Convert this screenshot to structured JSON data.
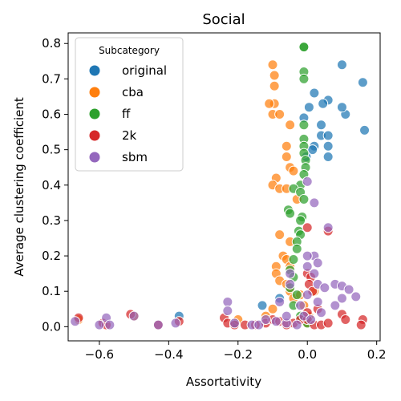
{
  "chart_data": {
    "type": "scatter",
    "title": "Social",
    "xlabel": "Assortativity",
    "ylabel": "Average clustering coefficient",
    "xlim": [
      -0.69,
      0.21
    ],
    "ylim": [
      -0.04,
      0.83
    ],
    "xticks": [
      -0.6,
      -0.4,
      -0.2,
      0.0,
      0.2
    ],
    "xtick_labels": [
      "−0.6",
      "−0.4",
      "−0.2",
      "0.0",
      "0.2"
    ],
    "yticks": [
      0.0,
      0.1,
      0.2,
      0.3,
      0.4,
      0.5,
      0.6,
      0.7,
      0.8
    ],
    "ytick_labels": [
      "0.0",
      "0.1",
      "0.2",
      "0.3",
      "0.4",
      "0.5",
      "0.6",
      "0.7",
      "0.8"
    ],
    "grid": false,
    "legend": {
      "title": "Subcategory",
      "location": "upper-left"
    },
    "series": [
      {
        "name": "original",
        "color": "#1f77b4",
        "points": [
          [
            0.1,
            0.74
          ],
          [
            0.16,
            0.69
          ],
          [
            0.165,
            0.555
          ],
          [
            0.11,
            0.6
          ],
          [
            0.1,
            0.62
          ],
          [
            0.06,
            0.64
          ],
          [
            0.045,
            0.63
          ],
          [
            0.02,
            0.66
          ],
          [
            0.005,
            0.62
          ],
          [
            -0.01,
            0.59
          ],
          [
            0.04,
            0.57
          ],
          [
            0.04,
            0.54
          ],
          [
            0.06,
            0.54
          ],
          [
            0.06,
            0.51
          ],
          [
            0.02,
            0.51
          ],
          [
            0.015,
            0.5
          ],
          [
            0.06,
            0.48
          ],
          [
            -0.003,
            0.48
          ],
          [
            -0.08,
            0.08
          ],
          [
            -0.13,
            0.06
          ],
          [
            -0.37,
            0.03
          ],
          [
            -0.21,
            0.01
          ]
        ]
      },
      {
        "name": "cba",
        "color": "#ff7f0e",
        "points": [
          [
            -0.1,
            0.74
          ],
          [
            -0.095,
            0.71
          ],
          [
            -0.095,
            0.68
          ],
          [
            -0.095,
            0.63
          ],
          [
            -0.11,
            0.63
          ],
          [
            -0.1,
            0.6
          ],
          [
            -0.08,
            0.6
          ],
          [
            -0.05,
            0.57
          ],
          [
            -0.06,
            0.51
          ],
          [
            -0.06,
            0.48
          ],
          [
            -0.05,
            0.45
          ],
          [
            -0.04,
            0.44
          ],
          [
            -0.09,
            0.42
          ],
          [
            -0.1,
            0.4
          ],
          [
            -0.08,
            0.39
          ],
          [
            -0.06,
            0.39
          ],
          [
            -0.03,
            0.36
          ],
          [
            -0.08,
            0.26
          ],
          [
            -0.05,
            0.24
          ],
          [
            -0.07,
            0.2
          ],
          [
            -0.06,
            0.19
          ],
          [
            -0.09,
            0.17
          ],
          [
            -0.05,
            0.17
          ],
          [
            -0.09,
            0.15
          ],
          [
            -0.08,
            0.13
          ],
          [
            -0.06,
            0.12
          ],
          [
            -0.05,
            0.1
          ],
          [
            -0.04,
            0.08
          ],
          [
            -0.1,
            0.05
          ],
          [
            -0.12,
            0.03
          ],
          [
            -0.5,
            0.03
          ],
          [
            -0.66,
            0.02
          ],
          [
            -0.2,
            0.02
          ],
          [
            0.0,
            0.01
          ],
          [
            -0.02,
            0.09
          ],
          [
            0.02,
            0.1
          ],
          [
            -0.01,
            0.06
          ],
          [
            0.005,
            0.03
          ]
        ]
      },
      {
        "name": "ff",
        "color": "#2ca02c",
        "points": [
          [
            -0.01,
            0.79
          ],
          [
            -0.01,
            0.79
          ],
          [
            -0.01,
            0.72
          ],
          [
            -0.01,
            0.7
          ],
          [
            -0.01,
            0.57
          ],
          [
            -0.01,
            0.53
          ],
          [
            -0.01,
            0.51
          ],
          [
            -0.01,
            0.49
          ],
          [
            -0.005,
            0.47
          ],
          [
            -0.005,
            0.45
          ],
          [
            -0.01,
            0.43
          ],
          [
            -0.02,
            0.4
          ],
          [
            -0.04,
            0.39
          ],
          [
            -0.02,
            0.38
          ],
          [
            -0.01,
            0.36
          ],
          [
            -0.055,
            0.33
          ],
          [
            -0.05,
            0.32
          ],
          [
            -0.015,
            0.31
          ],
          [
            -0.02,
            0.3
          ],
          [
            -0.025,
            0.27
          ],
          [
            -0.02,
            0.26
          ],
          [
            -0.03,
            0.24
          ],
          [
            -0.03,
            0.22
          ],
          [
            -0.04,
            0.19
          ],
          [
            -0.05,
            0.16
          ],
          [
            -0.04,
            0.14
          ],
          [
            -0.05,
            0.11
          ],
          [
            -0.03,
            0.09
          ],
          [
            -0.04,
            0.06
          ],
          [
            -0.02,
            0.03
          ],
          [
            0.0,
            0.01
          ]
        ]
      },
      {
        "name": "2k",
        "color": "#d62728",
        "points": [
          [
            -0.66,
            0.025
          ],
          [
            -0.59,
            0.01
          ],
          [
            -0.58,
            0.005
          ],
          [
            -0.51,
            0.035
          ],
          [
            -0.43,
            0.005
          ],
          [
            -0.37,
            0.015
          ],
          [
            -0.24,
            0.025
          ],
          [
            -0.23,
            0.01
          ],
          [
            -0.21,
            0.005
          ],
          [
            -0.18,
            0.005
          ],
          [
            -0.15,
            0.005
          ],
          [
            -0.12,
            0.01
          ],
          [
            -0.1,
            0.02
          ],
          [
            -0.08,
            0.015
          ],
          [
            -0.06,
            0.005
          ],
          [
            -0.04,
            0.01
          ],
          [
            -0.02,
            0.02
          ],
          [
            0.0,
            0.02
          ],
          [
            0.02,
            0.005
          ],
          [
            0.04,
            0.005
          ],
          [
            0.06,
            0.01
          ],
          [
            0.1,
            0.035
          ],
          [
            0.11,
            0.02
          ],
          [
            0.16,
            0.02
          ],
          [
            0.155,
            0.005
          ],
          [
            0.06,
            0.27
          ],
          [
            0.0,
            0.28
          ],
          [
            0.0,
            0.15
          ],
          [
            0.01,
            0.14
          ],
          [
            0.005,
            0.12
          ],
          [
            0.015,
            0.1
          ],
          [
            0.03,
            0.05
          ],
          [
            0.0,
            0.04
          ]
        ]
      },
      {
        "name": "sbm",
        "color": "#9467bd",
        "points": [
          [
            -0.67,
            0.015
          ],
          [
            -0.6,
            0.005
          ],
          [
            -0.58,
            0.025
          ],
          [
            -0.57,
            0.005
          ],
          [
            -0.5,
            0.03
          ],
          [
            -0.43,
            0.005
          ],
          [
            -0.38,
            0.01
          ],
          [
            -0.23,
            0.07
          ],
          [
            -0.23,
            0.045
          ],
          [
            -0.21,
            0.01
          ],
          [
            -0.16,
            0.005
          ],
          [
            -0.14,
            0.005
          ],
          [
            -0.12,
            0.02
          ],
          [
            -0.09,
            0.015
          ],
          [
            -0.06,
            0.01
          ],
          [
            -0.03,
            0.005
          ],
          [
            -0.01,
            0.03
          ],
          [
            0.0,
            0.41
          ],
          [
            0.02,
            0.35
          ],
          [
            0.06,
            0.28
          ],
          [
            0.02,
            0.2
          ],
          [
            0.03,
            0.18
          ],
          [
            0.0,
            0.2
          ],
          [
            0.0,
            0.17
          ],
          [
            0.02,
            0.15
          ],
          [
            -0.05,
            0.15
          ],
          [
            -0.05,
            0.12
          ],
          [
            0.03,
            0.12
          ],
          [
            0.05,
            0.11
          ],
          [
            0.08,
            0.12
          ],
          [
            0.1,
            0.115
          ],
          [
            0.12,
            0.105
          ],
          [
            0.14,
            0.085
          ],
          [
            0.1,
            0.08
          ],
          [
            0.08,
            0.06
          ],
          [
            0.03,
            0.07
          ],
          [
            0.04,
            0.04
          ],
          [
            0.0,
            0.09
          ],
          [
            -0.02,
            0.06
          ],
          [
            -0.08,
            0.07
          ],
          [
            -0.06,
            0.03
          ],
          [
            0.01,
            0.02
          ]
        ]
      }
    ]
  }
}
